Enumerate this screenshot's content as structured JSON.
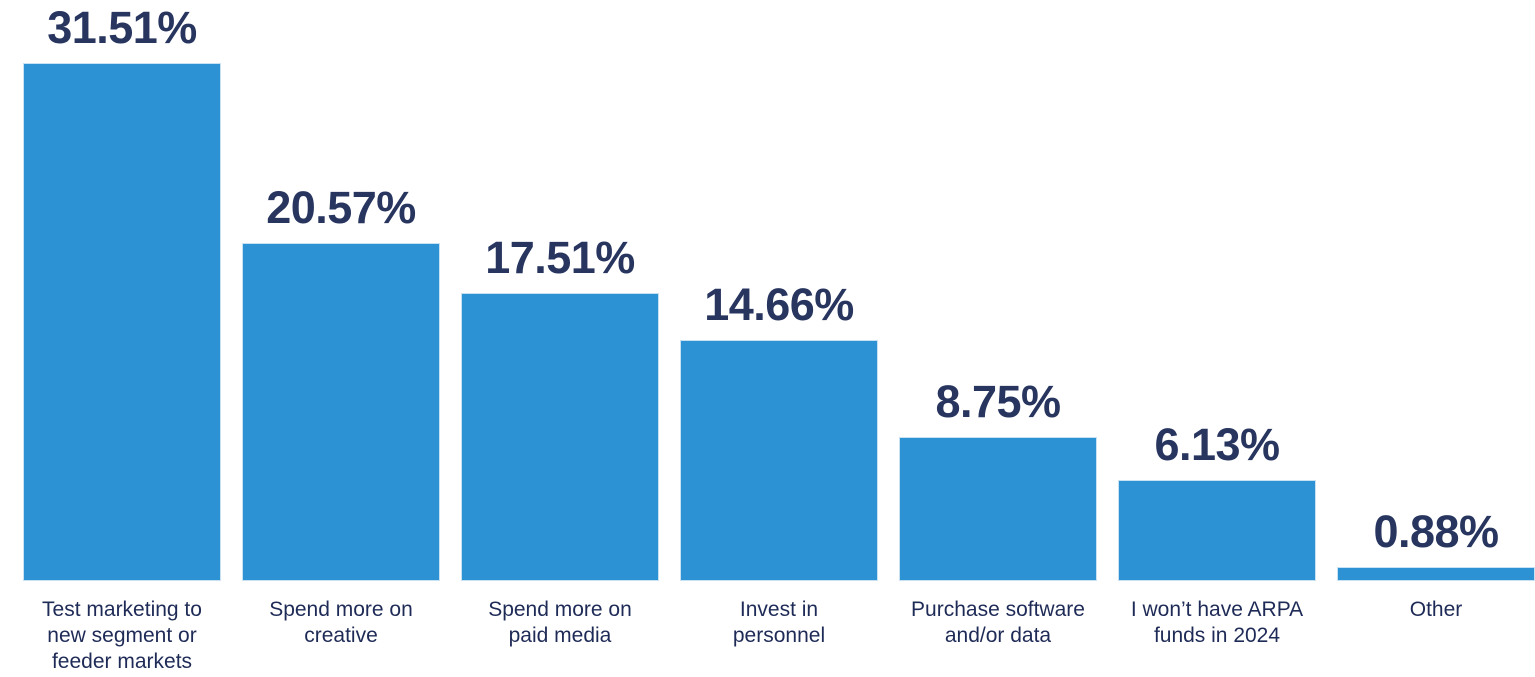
{
  "chart_data": {
    "type": "bar",
    "title": "",
    "xlabel": "",
    "ylabel": "",
    "ylim": [
      0,
      31.51
    ],
    "grid": false,
    "categories": [
      [
        "Test marketing to",
        "new segment or",
        "feeder markets"
      ],
      [
        "Spend more on",
        "creative"
      ],
      [
        "Spend more on",
        "paid media"
      ],
      [
        "Invest in",
        "personnel"
      ],
      [
        "Purchase software",
        "and/or data"
      ],
      [
        "I won’t have ARPA",
        "funds in 2024"
      ],
      [
        "Other"
      ]
    ],
    "values": [
      31.51,
      20.57,
      17.51,
      14.66,
      8.75,
      6.13,
      0.88
    ],
    "value_labels": [
      "31.51%",
      "20.57%",
      "17.51%",
      "14.66%",
      "8.75%",
      "6.13%",
      "0.88%"
    ],
    "colors": {
      "bar": "#2d92d3",
      "value_label": "#27355f",
      "category_label": "#1f2b57"
    }
  }
}
